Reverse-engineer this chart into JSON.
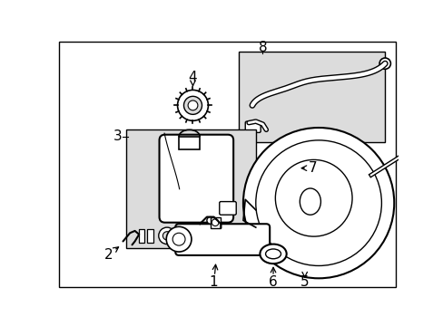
{
  "background_color": "#ffffff",
  "line_color": "#000000",
  "box_fill": "#dcdcdc",
  "figsize": [
    4.89,
    3.6
  ],
  "dpi": 100
}
